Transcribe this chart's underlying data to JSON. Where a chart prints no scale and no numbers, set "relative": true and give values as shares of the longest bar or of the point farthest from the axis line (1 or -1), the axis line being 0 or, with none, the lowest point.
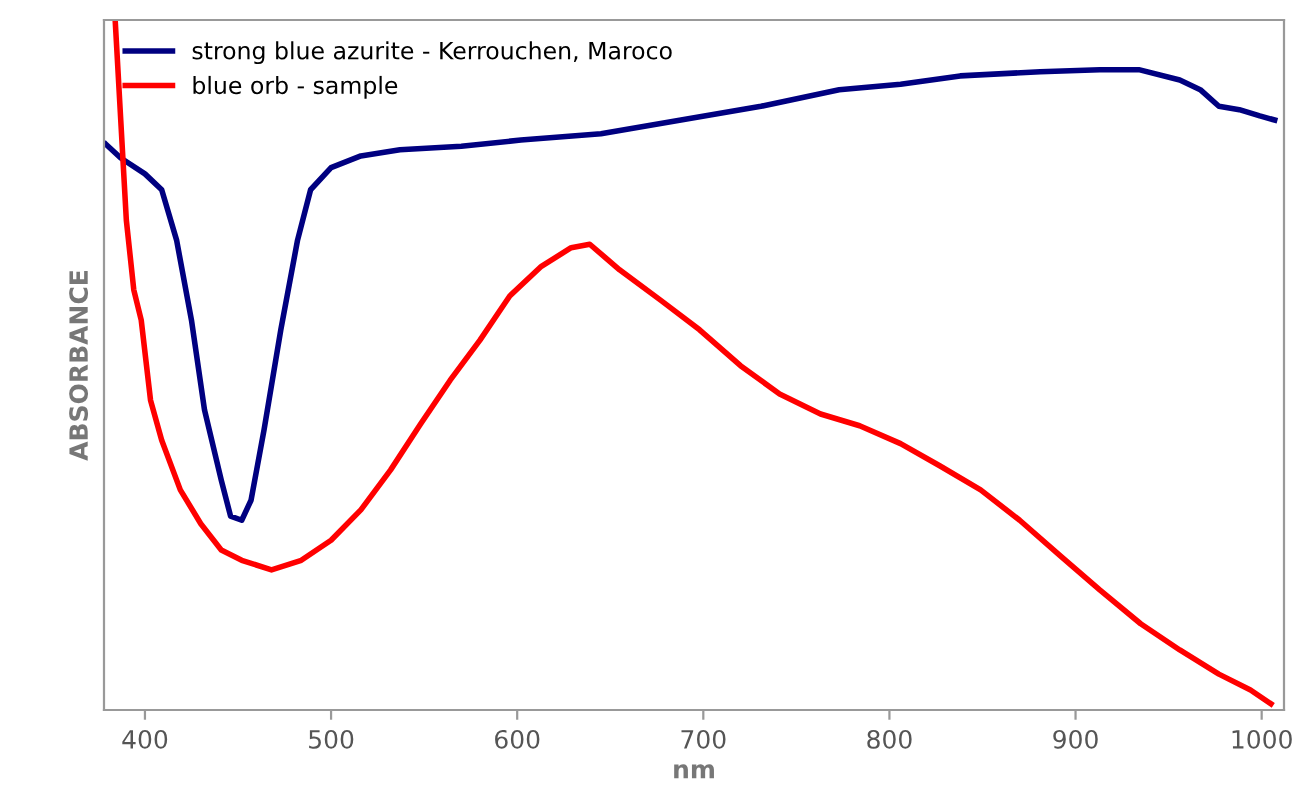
{
  "chart_data": {
    "type": "line",
    "relative": true,
    "xlabel": "nm",
    "ylabel": "ABSORBANCE",
    "xlim": [
      378,
      1012
    ],
    "xticks": [
      400,
      500,
      600,
      700,
      800,
      900,
      1000
    ],
    "grid": false,
    "legend": "top left",
    "marker": "none",
    "line_style": "solid",
    "series": [
      {
        "name": "strong blue azurite - Kerrouchen, Maroco",
        "color": "#000080",
        "x": [
          379,
          387,
          400,
          409,
          417,
          425,
          432,
          441,
          446,
          452,
          457,
          464,
          473,
          482,
          489,
          500,
          516,
          537,
          570,
          602,
          645,
          688,
          731,
          773,
          806,
          838,
          881,
          913,
          934,
          956,
          967,
          977,
          988,
          999,
          1007
        ],
        "values": [
          0.82,
          0.8,
          0.777,
          0.754,
          0.681,
          0.565,
          0.435,
          0.333,
          0.281,
          0.275,
          0.304,
          0.406,
          0.551,
          0.681,
          0.754,
          0.786,
          0.803,
          0.812,
          0.817,
          0.826,
          0.835,
          0.855,
          0.875,
          0.899,
          0.907,
          0.919,
          0.925,
          0.928,
          0.928,
          0.913,
          0.899,
          0.875,
          0.87,
          0.861,
          0.855
        ]
      },
      {
        "name": "blue orb - sample",
        "color": "#ff0000",
        "x": [
          384,
          387,
          390,
          394,
          398,
          403,
          409,
          419,
          430,
          441,
          452,
          468,
          484,
          500,
          516,
          532,
          548,
          564,
          580,
          596,
          613,
          629,
          639,
          655,
          677,
          698,
          720,
          741,
          763,
          784,
          806,
          827,
          849,
          870,
          892,
          913,
          935,
          956,
          977,
          994,
          1005
        ],
        "values": [
          1.0,
          0.855,
          0.71,
          0.609,
          0.565,
          0.449,
          0.391,
          0.319,
          0.27,
          0.232,
          0.217,
          0.203,
          0.217,
          0.246,
          0.29,
          0.348,
          0.414,
          0.478,
          0.536,
          0.6,
          0.643,
          0.67,
          0.675,
          0.638,
          0.594,
          0.551,
          0.499,
          0.458,
          0.429,
          0.412,
          0.386,
          0.354,
          0.319,
          0.275,
          0.223,
          0.174,
          0.125,
          0.087,
          0.052,
          0.029,
          0.009
        ]
      }
    ]
  }
}
